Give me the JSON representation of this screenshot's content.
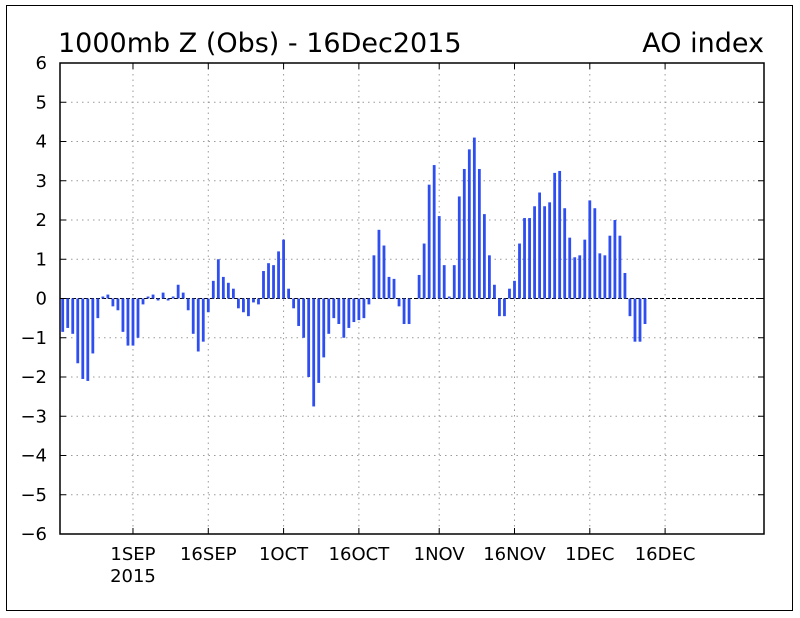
{
  "header": {
    "title": "1000mb Z (Obs) - 16Dec2015",
    "index_label": "AO index"
  },
  "colors": {
    "bar": "#2f4ef0",
    "axis": "#000000",
    "grid": "#9a9a9a"
  },
  "chart_data": {
    "type": "bar",
    "title": "1000mb Z (Obs) - 16Dec2015",
    "subtitle": "AO index",
    "xlabel": "",
    "ylabel": "",
    "ylim": [
      -6,
      6
    ],
    "y_ticks": [
      6,
      5,
      4,
      3,
      2,
      1,
      0,
      -1,
      -2,
      -3,
      -4,
      -5,
      -6
    ],
    "grid": true,
    "start_date": "2015-08-18",
    "x_ticks": [
      {
        "label": "1SEP",
        "date": "2015-09-01"
      },
      {
        "label": "16SEP",
        "date": "2015-09-16"
      },
      {
        "label": "1OCT",
        "date": "2015-10-01"
      },
      {
        "label": "16OCT",
        "date": "2015-10-16"
      },
      {
        "label": "1NOV",
        "date": "2015-11-01"
      },
      {
        "label": "16NOV",
        "date": "2015-11-16"
      },
      {
        "label": "1DEC",
        "date": "2015-12-01"
      },
      {
        "label": "16DEC",
        "date": "2015-12-16"
      }
    ],
    "year_label": "2015",
    "values": [
      -0.85,
      -0.75,
      -0.9,
      -1.65,
      -2.05,
      -2.1,
      -1.4,
      -0.5,
      0.05,
      0.1,
      -0.2,
      -0.3,
      -0.85,
      -1.2,
      -1.2,
      -1.0,
      -0.15,
      0.05,
      0.1,
      -0.05,
      0.15,
      -0.05,
      0.05,
      0.35,
      0.15,
      -0.3,
      -0.9,
      -1.35,
      -1.1,
      -0.35,
      0.45,
      1.0,
      0.55,
      0.4,
      0.25,
      -0.25,
      -0.35,
      -0.45,
      -0.1,
      -0.15,
      0.7,
      0.9,
      0.85,
      1.2,
      1.5,
      0.25,
      -0.25,
      -0.7,
      -1.0,
      -2.0,
      -2.75,
      -2.15,
      -1.5,
      -0.9,
      -0.5,
      -0.65,
      -1.0,
      -0.75,
      -0.6,
      -0.55,
      -0.5,
      -0.15,
      1.1,
      1.75,
      1.35,
      0.55,
      0.5,
      -0.2,
      -0.65,
      -0.65,
      0.0,
      0.6,
      1.4,
      2.9,
      3.4,
      2.1,
      0.85,
      0.05,
      0.85,
      2.6,
      3.3,
      3.8,
      4.1,
      3.3,
      2.15,
      1.1,
      0.35,
      -0.45,
      -0.45,
      0.25,
      0.45,
      1.4,
      2.05,
      2.05,
      2.35,
      2.7,
      2.35,
      2.45,
      3.2,
      3.25,
      2.3,
      1.55,
      1.05,
      1.1,
      1.5,
      2.5,
      2.3,
      1.15,
      1.1,
      1.6,
      2.0,
      1.6,
      0.65,
      -0.45,
      -1.1,
      -1.1,
      -0.65
    ]
  }
}
